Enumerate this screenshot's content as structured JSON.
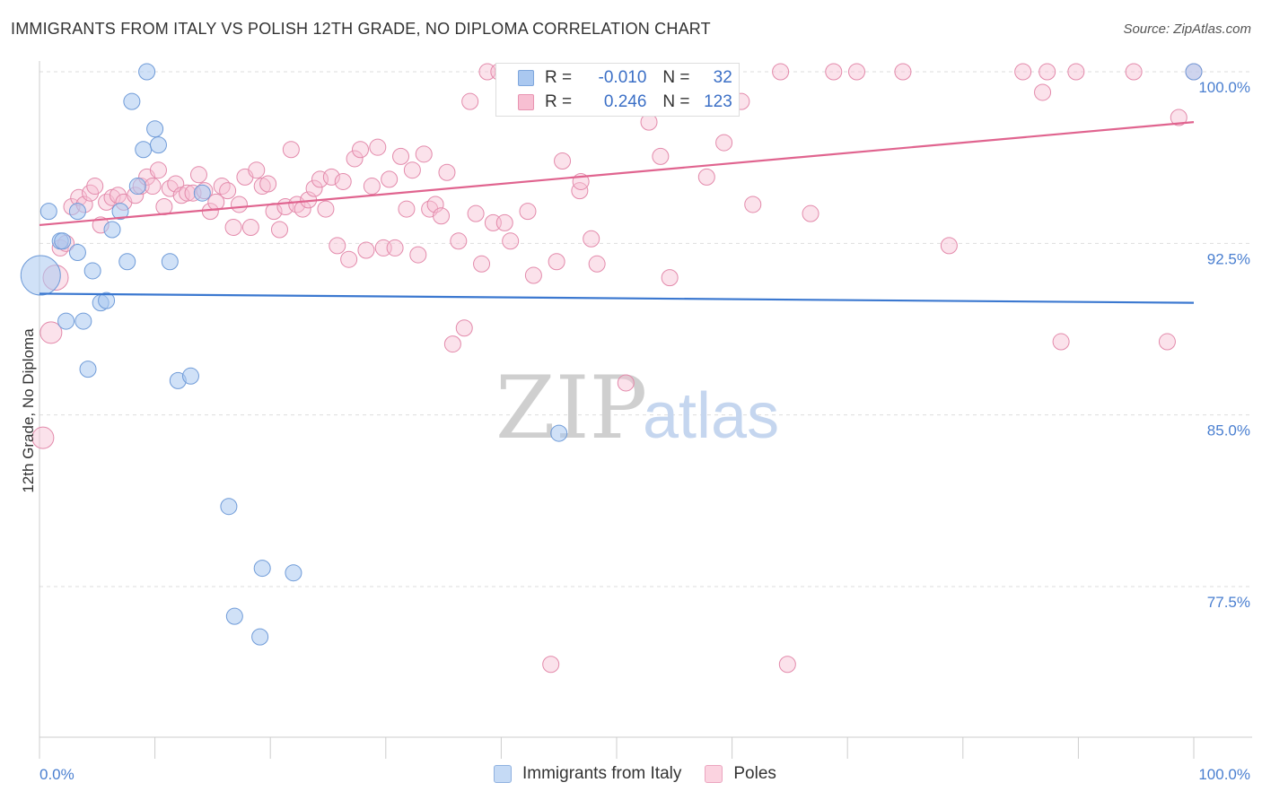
{
  "title": "IMMIGRANTS FROM ITALY VS POLISH 12TH GRADE, NO DIPLOMA CORRELATION CHART",
  "source": "Source: ZipAtlas.com",
  "watermark": {
    "zip": "ZIP",
    "atlas": "atlas"
  },
  "legend": {
    "rows": [
      {
        "r_label": "R =",
        "r_value": "-0.010",
        "n_label": "N =",
        "n_value": "32",
        "color": "#aac8f0",
        "border": "#7ea6dc"
      },
      {
        "r_label": "R =",
        "r_value": "0.246",
        "n_label": "N =",
        "n_value": "123",
        "color": "#f7bfd2",
        "border": "#e893b1"
      }
    ]
  },
  "bottom_legend": [
    {
      "label": "Immigrants from Italy",
      "color": "#c5daf5",
      "border": "#8fb1e0"
    },
    {
      "label": "Poles",
      "color": "#fbd3e0",
      "border": "#eba5bf"
    }
  ],
  "chart_data": {
    "type": "scatter",
    "title": "IMMIGRANTS FROM ITALY VS POLISH 12TH GRADE, NO DIPLOMA CORRELATION CHART",
    "xlabel": "",
    "ylabel": "12th Grade, No Diploma",
    "xlim": [
      0,
      100
    ],
    "ylim": [
      70.5,
      101
    ],
    "x_tick_labels": [
      "0.0%",
      "100.0%"
    ],
    "y_ticks": [
      77.5,
      85.0,
      92.5,
      100.0
    ],
    "y_tick_labels": [
      "77.5%",
      "85.0%",
      "92.5%",
      "100.0%"
    ],
    "grid": true,
    "colors": {
      "italy": "#3b78d0",
      "poles": "#e0648f"
    },
    "series": [
      {
        "name": "Immigrants from Italy",
        "trend": {
          "x": [
            0,
            100
          ],
          "y": [
            90.3,
            89.9
          ]
        },
        "points": [
          [
            0.1,
            91.1,
            22
          ],
          [
            0.8,
            93.9,
            9
          ],
          [
            1.8,
            92.6,
            9
          ],
          [
            2.0,
            92.6,
            9
          ],
          [
            3.3,
            93.9,
            9
          ],
          [
            3.3,
            92.1,
            9
          ],
          [
            2.3,
            89.1,
            9
          ],
          [
            3.8,
            89.1,
            9
          ],
          [
            4.6,
            91.3,
            9
          ],
          [
            5.3,
            89.9,
            9
          ],
          [
            5.8,
            90.0,
            9
          ],
          [
            6.3,
            93.1,
            9
          ],
          [
            7.0,
            93.9,
            9
          ],
          [
            7.6,
            91.7,
            9
          ],
          [
            8.0,
            98.7,
            9
          ],
          [
            8.5,
            95.0,
            9
          ],
          [
            9.0,
            96.6,
            9
          ],
          [
            9.3,
            100.0,
            9
          ],
          [
            10.0,
            97.5,
            9
          ],
          [
            10.3,
            96.8,
            9
          ],
          [
            11.3,
            91.7,
            9
          ],
          [
            12.0,
            86.5,
            9
          ],
          [
            13.1,
            86.7,
            9
          ],
          [
            14.1,
            94.7,
            9
          ],
          [
            4.2,
            87.0,
            9
          ],
          [
            16.4,
            81.0,
            9
          ],
          [
            16.9,
            76.2,
            9
          ],
          [
            19.3,
            78.3,
            9
          ],
          [
            19.1,
            75.3,
            9
          ],
          [
            22.0,
            78.1,
            9
          ],
          [
            45.0,
            84.2,
            9
          ],
          [
            100.0,
            100.0,
            9
          ]
        ]
      },
      {
        "name": "Poles",
        "trend": {
          "x": [
            0,
            100
          ],
          "y": [
            93.3,
            97.8
          ]
        },
        "points": [
          [
            0.3,
            84.0,
            12
          ],
          [
            1.0,
            88.6,
            12
          ],
          [
            1.4,
            91.0,
            14
          ],
          [
            1.8,
            92.3,
            9
          ],
          [
            2.3,
            92.5,
            9
          ],
          [
            2.8,
            94.1,
            9
          ],
          [
            3.4,
            94.5,
            9
          ],
          [
            3.9,
            94.2,
            9
          ],
          [
            4.4,
            94.7,
            9
          ],
          [
            4.8,
            95.0,
            9
          ],
          [
            5.3,
            93.3,
            9
          ],
          [
            5.8,
            94.3,
            9
          ],
          [
            6.3,
            94.5,
            9
          ],
          [
            6.8,
            94.6,
            9
          ],
          [
            7.3,
            94.3,
            9
          ],
          [
            8.3,
            94.6,
            9
          ],
          [
            8.8,
            95.0,
            9
          ],
          [
            9.3,
            95.4,
            9
          ],
          [
            9.8,
            95.0,
            9
          ],
          [
            10.3,
            95.7,
            9
          ],
          [
            10.8,
            94.1,
            9
          ],
          [
            11.3,
            94.9,
            9
          ],
          [
            11.8,
            95.1,
            9
          ],
          [
            12.3,
            94.6,
            9
          ],
          [
            12.8,
            94.7,
            9
          ],
          [
            13.3,
            94.7,
            9
          ],
          [
            13.8,
            95.5,
            9
          ],
          [
            14.3,
            94.8,
            9
          ],
          [
            14.8,
            93.9,
            9
          ],
          [
            15.3,
            94.3,
            9
          ],
          [
            15.8,
            95.0,
            9
          ],
          [
            16.3,
            94.8,
            9
          ],
          [
            16.8,
            93.2,
            9
          ],
          [
            17.3,
            94.2,
            9
          ],
          [
            17.8,
            95.4,
            9
          ],
          [
            18.3,
            93.2,
            9
          ],
          [
            18.8,
            95.7,
            9
          ],
          [
            19.3,
            95.0,
            9
          ],
          [
            19.8,
            95.1,
            9
          ],
          [
            20.3,
            93.9,
            9
          ],
          [
            20.8,
            93.1,
            9
          ],
          [
            21.3,
            94.1,
            9
          ],
          [
            21.8,
            96.6,
            9
          ],
          [
            22.3,
            94.2,
            9
          ],
          [
            22.8,
            94.0,
            9
          ],
          [
            23.3,
            94.4,
            9
          ],
          [
            23.8,
            94.9,
            9
          ],
          [
            24.3,
            95.3,
            9
          ],
          [
            24.8,
            94.0,
            9
          ],
          [
            25.3,
            95.4,
            9
          ],
          [
            25.8,
            92.4,
            9
          ],
          [
            26.3,
            95.2,
            9
          ],
          [
            26.8,
            91.8,
            9
          ],
          [
            27.3,
            96.2,
            9
          ],
          [
            27.8,
            96.6,
            9
          ],
          [
            28.3,
            92.2,
            9
          ],
          [
            28.8,
            95.0,
            9
          ],
          [
            29.3,
            96.7,
            9
          ],
          [
            29.8,
            92.3,
            9
          ],
          [
            30.3,
            95.3,
            9
          ],
          [
            30.8,
            92.3,
            9
          ],
          [
            31.3,
            96.3,
            9
          ],
          [
            31.8,
            94.0,
            9
          ],
          [
            32.3,
            95.7,
            9
          ],
          [
            32.8,
            92.0,
            9
          ],
          [
            33.3,
            96.4,
            9
          ],
          [
            33.8,
            94.0,
            9
          ],
          [
            34.3,
            94.2,
            9
          ],
          [
            34.8,
            93.7,
            9
          ],
          [
            35.3,
            95.6,
            9
          ],
          [
            35.8,
            88.1,
            9
          ],
          [
            36.3,
            92.6,
            9
          ],
          [
            36.8,
            88.8,
            9
          ],
          [
            37.3,
            98.7,
            9
          ],
          [
            37.8,
            93.8,
            9
          ],
          [
            38.3,
            91.6,
            9
          ],
          [
            38.8,
            100.0,
            9
          ],
          [
            39.3,
            93.4,
            9
          ],
          [
            39.8,
            100.0,
            9
          ],
          [
            40.3,
            93.4,
            9
          ],
          [
            40.8,
            92.6,
            9
          ],
          [
            41.3,
            98.7,
            9
          ],
          [
            41.8,
            100.0,
            9
          ],
          [
            42.3,
            93.9,
            9
          ],
          [
            42.8,
            91.1,
            9
          ],
          [
            43.3,
            100.0,
            9
          ],
          [
            43.8,
            100.0,
            9
          ],
          [
            44.3,
            74.1,
            9
          ],
          [
            44.8,
            91.7,
            9
          ],
          [
            45.3,
            96.1,
            9
          ],
          [
            46.3,
            100.0,
            9
          ],
          [
            46.8,
            94.8,
            9
          ],
          [
            46.9,
            95.2,
            9
          ],
          [
            47.8,
            92.7,
            9
          ],
          [
            48.3,
            91.6,
            9
          ],
          [
            49.8,
            100.0,
            9
          ],
          [
            50.8,
            86.4,
            9
          ],
          [
            52.8,
            97.8,
            9
          ],
          [
            53.8,
            96.3,
            9
          ],
          [
            54.6,
            91.0,
            9
          ],
          [
            55.8,
            100.0,
            9
          ],
          [
            56.8,
            100.0,
            9
          ],
          [
            57.8,
            95.4,
            9
          ],
          [
            58.3,
            100.0,
            9
          ],
          [
            59.3,
            96.9,
            9
          ],
          [
            60.8,
            98.7,
            9
          ],
          [
            61.8,
            94.2,
            9
          ],
          [
            64.8,
            74.1,
            9
          ],
          [
            66.8,
            93.8,
            9
          ],
          [
            68.8,
            100.0,
            9
          ],
          [
            70.8,
            100.0,
            9
          ],
          [
            74.8,
            100.0,
            9
          ],
          [
            85.2,
            100.0,
            9
          ],
          [
            86.9,
            99.1,
            9
          ],
          [
            87.3,
            100.0,
            9
          ],
          [
            89.8,
            100.0,
            9
          ],
          [
            94.8,
            100.0,
            9
          ],
          [
            98.7,
            98.0,
            9
          ],
          [
            97.7,
            88.2,
            9
          ],
          [
            100.0,
            100.0,
            9
          ],
          [
            78.8,
            92.4,
            9
          ],
          [
            88.5,
            88.2,
            9
          ],
          [
            64.2,
            100.0,
            9
          ]
        ]
      }
    ]
  }
}
